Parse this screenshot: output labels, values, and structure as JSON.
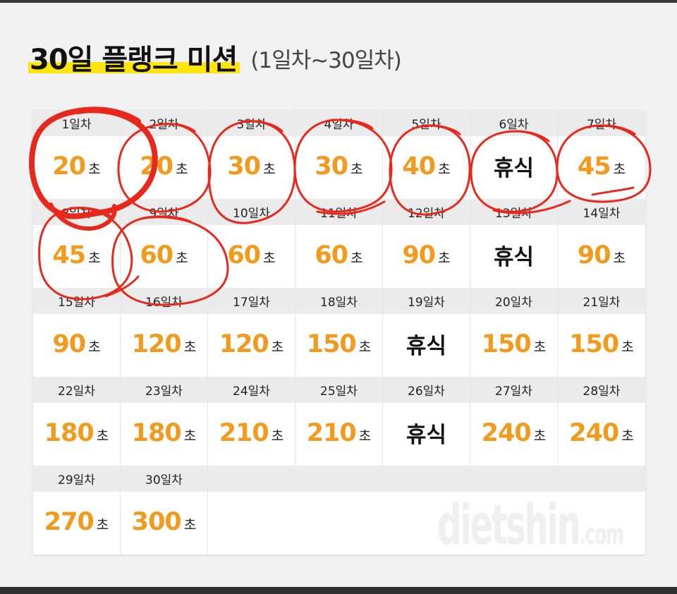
{
  "title": {
    "main": "30일 플랭크 미션",
    "sub": "(1일차~30일차)"
  },
  "unit": "초",
  "days": [
    {
      "day": "1일차",
      "value": "20"
    },
    {
      "day": "2일차",
      "value": "20"
    },
    {
      "day": "3일차",
      "value": "30"
    },
    {
      "day": "4일차",
      "value": "30"
    },
    {
      "day": "5일차",
      "value": "40"
    },
    {
      "day": "6일차",
      "rest": "휴식"
    },
    {
      "day": "7일차",
      "value": "45"
    },
    {
      "day": "8일차",
      "value": "45"
    },
    {
      "day": "9일차",
      "value": "60"
    },
    {
      "day": "10일차",
      "value": "60"
    },
    {
      "day": "11일차",
      "value": "60"
    },
    {
      "day": "12일차",
      "value": "90"
    },
    {
      "day": "13일차",
      "rest": "휴식"
    },
    {
      "day": "14일차",
      "value": "90"
    },
    {
      "day": "15일차",
      "value": "90"
    },
    {
      "day": "16일차",
      "value": "120"
    },
    {
      "day": "17일차",
      "value": "120"
    },
    {
      "day": "18일차",
      "value": "150"
    },
    {
      "day": "19일차",
      "rest": "휴식"
    },
    {
      "day": "20일차",
      "value": "150"
    },
    {
      "day": "21일차",
      "value": "150"
    },
    {
      "day": "22일차",
      "value": "180"
    },
    {
      "day": "23일차",
      "value": "180"
    },
    {
      "day": "24일차",
      "value": "210"
    },
    {
      "day": "25일차",
      "value": "210"
    },
    {
      "day": "26일차",
      "rest": "휴식"
    },
    {
      "day": "27일차",
      "value": "240"
    },
    {
      "day": "28일차",
      "value": "240"
    },
    {
      "day": "29일차",
      "value": "270"
    },
    {
      "day": "30일차",
      "value": "300"
    }
  ],
  "watermark": {
    "text": "dietshin",
    "suffix": ".com"
  },
  "colors": {
    "accent": "#f29a1c",
    "highlight": "#ffe60a",
    "annotation": "#e8281c"
  }
}
